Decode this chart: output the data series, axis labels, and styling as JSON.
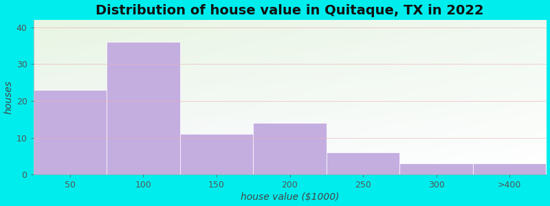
{
  "title": "Distribution of house value in Quitaque, TX in 2022",
  "xlabel": "house value ($1000)",
  "ylabel": "houses",
  "bar_labels": [
    "50",
    "100",
    "150",
    "200",
    "250",
    "300",
    ">400"
  ],
  "bar_values": [
    23,
    36,
    11,
    14,
    6,
    3,
    3
  ],
  "bar_color": "#c4aee0",
  "bar_edge_color": "#ffffff",
  "ylim": [
    0,
    42
  ],
  "yticks": [
    0,
    10,
    20,
    30,
    40
  ],
  "background_outer": "#00eded",
  "grid_color": "#e8b0b0",
  "title_fontsize": 14,
  "axis_label_fontsize": 10,
  "tick_fontsize": 9,
  "bar_left_edges": [
    0,
    1,
    2,
    3,
    4,
    5,
    6
  ],
  "bar_width": 1.0
}
